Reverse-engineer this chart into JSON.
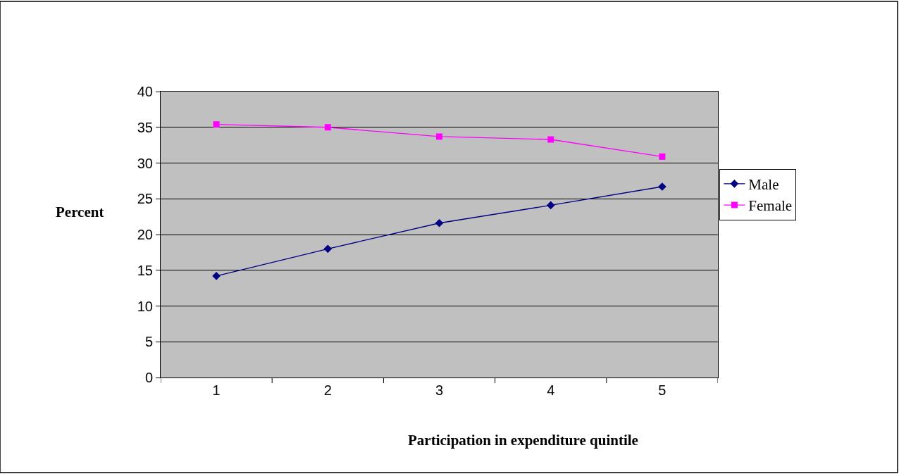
{
  "chart_data": {
    "type": "line",
    "xlabel": "Participation in expenditure quintile",
    "ylabel": "Percent",
    "categories": [
      "1",
      "2",
      "3",
      "4",
      "5"
    ],
    "series": [
      {
        "name": "Male",
        "color": "#000080",
        "marker": "diamond",
        "values": [
          14.2,
          18.0,
          21.6,
          24.1,
          26.7
        ]
      },
      {
        "name": "Female",
        "color": "#ff00ff",
        "marker": "square",
        "values": [
          35.4,
          35.0,
          33.7,
          33.3,
          30.9
        ]
      }
    ],
    "ylim": [
      0,
      40
    ],
    "yticks": [
      0,
      5,
      10,
      15,
      20,
      25,
      30,
      35,
      40
    ],
    "grid": "y",
    "legend": "right",
    "line_style": "solid"
  }
}
